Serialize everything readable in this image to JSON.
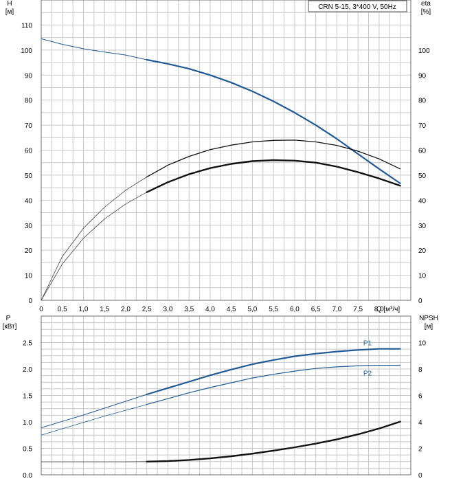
{
  "colors": {
    "blue": "#1f5a96",
    "dark": "#111111",
    "grid": "#c8c8c8"
  },
  "chart_data": [
    {
      "type": "line",
      "title": "CRN 5-15, 3*400 V, 50Hz",
      "xlabel": "Q [м³/ч]",
      "ylabel": [
        "H",
        "[м]"
      ],
      "y2label": [
        "eta",
        "[%]"
      ],
      "xlim": [
        0,
        8.75
      ],
      "ylim": [
        0,
        120
      ],
      "xticks": [
        "0",
        "0,5",
        "1,0",
        "1,5",
        "2,0",
        "2,5",
        "3,0",
        "3,5",
        "4,0",
        "4,5",
        "5,0",
        "5,5",
        "6,0",
        "6,5",
        "7,0",
        "7,5",
        "8,0"
      ],
      "yticks_left": [
        0,
        10,
        20,
        30,
        40,
        50,
        60,
        70,
        80,
        90,
        100,
        110
      ],
      "yticks_right": [
        0,
        10,
        20,
        30,
        40,
        50,
        60,
        70,
        80,
        90,
        100
      ],
      "grid": true,
      "series": [
        {
          "id": "H",
          "color": "#1f5a96",
          "x": [
            0,
            0.5,
            1,
            1.5,
            2,
            2.5,
            3,
            3.5,
            4,
            4.5,
            5,
            5.5,
            6,
            6.5,
            7,
            7.5,
            8,
            8.5
          ],
          "y": [
            104.5,
            102.3,
            100.5,
            99.2,
            98,
            96.1,
            94.5,
            92.5,
            90,
            87,
            83.5,
            79.5,
            75,
            70,
            64.5,
            58.5,
            52.5,
            46.7
          ],
          "operating_from": 2.5
        },
        {
          "id": "eta-upper",
          "x": [
            0,
            0.5,
            1,
            1.5,
            2,
            2.5,
            3,
            3.5,
            4,
            4.5,
            5,
            5.5,
            6,
            6.5,
            7,
            7.5,
            8,
            8.5
          ],
          "y": [
            0,
            17.5,
            28.8,
            37.2,
            44,
            49.3,
            54,
            57.5,
            60.2,
            62,
            63.3,
            63.9,
            64,
            63.3,
            61.9,
            59.6,
            56.5,
            52.5
          ],
          "operating_from": 2.5
        },
        {
          "id": "eta-lower",
          "x": [
            0,
            0.5,
            1,
            1.5,
            2,
            2.5,
            3,
            3.5,
            4,
            4.5,
            5,
            5.5,
            6,
            6.5,
            7,
            7.5,
            8,
            8.5
          ],
          "y": [
            0,
            14.5,
            24.8,
            32.5,
            38.5,
            43.2,
            47.2,
            50.4,
            52.8,
            54.5,
            55.6,
            56,
            55.8,
            55,
            53.4,
            51.2,
            48.7,
            45.8
          ],
          "operating_from": 2.5
        }
      ]
    },
    {
      "type": "line",
      "xlim": [
        0,
        8.75
      ],
      "ylim": [
        0,
        3
      ],
      "y2lim": [
        0,
        12
      ],
      "ylabel": [
        "P",
        "[кВт]"
      ],
      "y2label": [
        "NPSH",
        "[м]"
      ],
      "yticks_left": [
        "0.0",
        "0.5",
        "1.0",
        "1.5",
        "2.0",
        "2.5"
      ],
      "yticks_right": [
        "0",
        "2",
        "4",
        "6",
        "8",
        "10"
      ],
      "grid": true,
      "series": [
        {
          "id": "P1",
          "name": "P1",
          "color": "#1f5a96",
          "axis": "left",
          "x": [
            0,
            0.5,
            1,
            1.5,
            2,
            2.5,
            3,
            3.5,
            4,
            4.5,
            5,
            5.5,
            6,
            6.5,
            7,
            7.5,
            8,
            8.5
          ],
          "y": [
            0.89,
            1.01,
            1.13,
            1.26,
            1.39,
            1.52,
            1.64,
            1.76,
            1.88,
            1.99,
            2.09,
            2.17,
            2.24,
            2.29,
            2.33,
            2.36,
            2.38,
            2.38
          ],
          "operating_from": 2.5
        },
        {
          "id": "P2",
          "name": "P2",
          "color": "#1f5a96",
          "axis": "left",
          "x": [
            0,
            0.5,
            1,
            1.5,
            2,
            2.5,
            3,
            3.5,
            4,
            4.5,
            5,
            5.5,
            6,
            6.5,
            7,
            7.5,
            8,
            8.5
          ],
          "y": [
            0.75,
            0.87,
            0.99,
            1.11,
            1.22,
            1.33,
            1.44,
            1.55,
            1.65,
            1.74,
            1.83,
            1.9,
            1.96,
            2.01,
            2.04,
            2.06,
            2.07,
            2.07
          ],
          "operating_from": 2.5
        },
        {
          "id": "NPSH",
          "color": "#111111",
          "axis": "right",
          "x": [
            0,
            0.5,
            1,
            1.5,
            2,
            2.5,
            3,
            3.5,
            4,
            4.5,
            5,
            5.5,
            6,
            6.5,
            7,
            7.5,
            8,
            8.5
          ],
          "y": [
            0.98,
            0.98,
            0.98,
            0.98,
            0.98,
            1.0,
            1.04,
            1.12,
            1.24,
            1.4,
            1.6,
            1.83,
            2.08,
            2.36,
            2.68,
            3.06,
            3.5,
            4.02
          ],
          "operating_from": 2.5
        }
      ]
    }
  ]
}
